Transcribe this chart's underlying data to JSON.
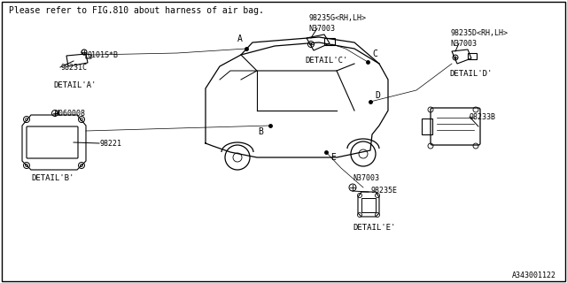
{
  "bg_color": "#ffffff",
  "border_color": "#000000",
  "title_text": "Please refer to FIG.810 about harness of air bag.",
  "diagram_id": "A343001122",
  "line_color": "#000000",
  "text_color": "#000000",
  "font_size": 7,
  "small_font_size": 6,
  "detail_a_parts": [
    "0101S*B",
    "98231C",
    "DETAIL'A'"
  ],
  "detail_b_parts": [
    "M060008",
    "98221",
    "DETAIL'B'"
  ],
  "detail_c_parts": [
    "N37003",
    "98235G<RH,LH>",
    "DETAIL'C'"
  ],
  "detail_d_parts": [
    "N37003",
    "98235D<RH,LH>",
    "DETAIL'D'"
  ],
  "detail_e_parts": [
    "N37003",
    "98235E",
    "DETAIL'E'"
  ],
  "main_unit": "98233B"
}
